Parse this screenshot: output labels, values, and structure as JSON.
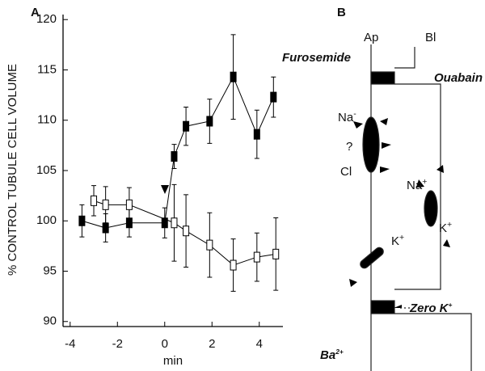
{
  "chart_data": {
    "type": "line",
    "panel": "A",
    "ylabel": "% CONTROL TUBULE CELL VOLUME",
    "xlabel": "min",
    "xlim": [
      -4.3,
      5.0
    ],
    "ylim": [
      89.5,
      120.5
    ],
    "xticks": [
      -4,
      -2,
      0,
      2,
      4
    ],
    "yticks": [
      90,
      95,
      100,
      105,
      110,
      115,
      120
    ],
    "series": [
      {
        "color": "#000000",
        "marker": "filled",
        "x": [
          -3.5,
          -2.5,
          -1.5,
          0,
          0.4,
          0.9,
          1.9,
          2.9,
          3.9,
          4.6
        ],
        "values": [
          100.0,
          99.3,
          99.8,
          99.8,
          106.4,
          109.4,
          109.9,
          114.3,
          108.6,
          112.3
        ],
        "errors": [
          1.6,
          1.4,
          1.4,
          1.5,
          1.2,
          1.9,
          2.2,
          4.2,
          2.4,
          2.0
        ]
      },
      {
        "color": "#000000",
        "marker": "open",
        "x": [
          -3.0,
          -2.5,
          -1.5,
          0.4,
          0.9,
          1.9,
          2.9,
          3.9,
          4.7
        ],
        "values": [
          102.0,
          101.6,
          101.6,
          99.8,
          99.0,
          97.6,
          95.6,
          96.4,
          96.7
        ],
        "errors": [
          1.5,
          1.8,
          1.7,
          3.8,
          3.6,
          3.2,
          2.6,
          2.4,
          3.6
        ]
      }
    ]
  },
  "diagram": {
    "panel": "B",
    "apical": "Ap",
    "basolateral": "Bl",
    "labels": {
      "furosemide": "Furosemide",
      "ouabain": "Ouabain",
      "question": "?",
      "cl": "Cl",
      "na_apical": {
        "text": "Na",
        "sup": "-"
      },
      "na_baso": {
        "text": "Na",
        "sup": "+"
      },
      "k_baso": {
        "text": "K",
        "sup": "+"
      },
      "k_channel": {
        "text": "K",
        "sup": "+"
      },
      "zero_k": {
        "text": "Zero K",
        "sup": "+"
      },
      "ba": {
        "text": "Ba",
        "sup": "2+"
      }
    }
  }
}
